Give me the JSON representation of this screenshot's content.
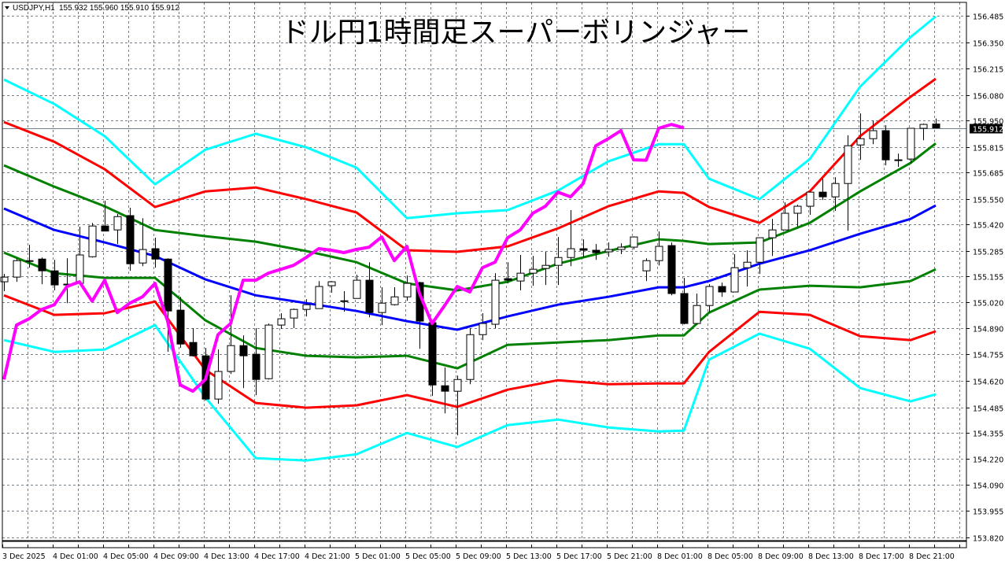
{
  "header": {
    "symbol": "USDJPY,H1",
    "ohlc": "155.932 155.960 155.910 155.912",
    "menu_icon": "triangle-down-icon"
  },
  "chart_data": {
    "type": "candlestick",
    "title": "ドル円1時間足スーパーボリンジャー",
    "ylim": [
      153.82,
      156.485
    ],
    "grid": true,
    "price_labels": [
      "156.485",
      "156.350",
      "156.215",
      "156.080",
      "155.950",
      "155.815",
      "155.685",
      "155.550",
      "155.420",
      "155.285",
      "155.155",
      "155.020",
      "154.890",
      "154.755",
      "154.620",
      "154.485",
      "154.355",
      "154.220",
      "154.090",
      "153.955",
      "153.820"
    ],
    "current_price": "155.912",
    "time_labels": [
      "3 Dec 2025",
      "4 Dec 01:00",
      "4 Dec 05:00",
      "4 Dec 09:00",
      "4 Dec 13:00",
      "4 Dec 17:00",
      "4 Dec 21:00",
      "5 Dec 01:00",
      "5 Dec 05:00",
      "5 Dec 09:00",
      "5 Dec 13:00",
      "5 Dec 17:00",
      "5 Dec 21:00",
      "8 Dec 01:00",
      "8 Dec 05:00",
      "8 Dec 09:00",
      "8 Dec 13:00",
      "8 Dec 17:00",
      "8 Dec 21:00"
    ],
    "colors": {
      "bull_fill": "#ffffff",
      "bear_fill": "#000000",
      "outline": "#000000",
      "grid": "#708090",
      "price_line": "#708090"
    },
    "candles": [
      [
        "3 Dec 21:00",
        155.126,
        155.166,
        155.078,
        155.15
      ],
      [
        "3 Dec 22:00",
        155.15,
        155.246,
        155.126,
        155.234
      ],
      [
        "3 Dec 23:00",
        155.234,
        155.315,
        155.198,
        155.232
      ],
      [
        "4 Dec 00:00",
        155.242,
        155.25,
        155.114,
        155.182
      ],
      [
        "4 Dec 01:00",
        155.182,
        155.238,
        155.082,
        155.11
      ],
      [
        "4 Dec 02:00",
        155.114,
        155.246,
        155.017,
        155.112
      ],
      [
        "4 Dec 03:00",
        155.118,
        155.407,
        155.118,
        155.263
      ],
      [
        "4 Dec 04:00",
        155.254,
        155.427,
        155.25,
        155.411
      ],
      [
        "4 Dec 05:00",
        155.411,
        155.54,
        155.385,
        155.385
      ],
      [
        "4 Dec 06:00",
        155.391,
        155.472,
        155.319,
        155.459
      ],
      [
        "4 Dec 07:00",
        155.464,
        155.504,
        155.182,
        155.218
      ],
      [
        "4 Dec 08:00",
        155.222,
        155.451,
        155.206,
        155.291
      ],
      [
        "4 Dec 09:00",
        155.295,
        155.351,
        155.198,
        155.242
      ],
      [
        "4 Dec 10:00",
        155.242,
        155.246,
        154.768,
        154.977
      ],
      [
        "4 Dec 11:00",
        154.981,
        155.049,
        154.788,
        154.808
      ],
      [
        "4 Dec 12:00",
        154.816,
        154.889,
        154.744,
        154.748
      ],
      [
        "4 Dec 13:00",
        154.748,
        154.788,
        154.52,
        154.527
      ],
      [
        "4 Dec 14:00",
        154.527,
        154.78,
        154.503,
        154.668
      ],
      [
        "4 Dec 15:00",
        154.668,
        155.057,
        154.655,
        154.8
      ],
      [
        "4 Dec 16:00",
        154.8,
        154.852,
        154.583,
        154.748
      ],
      [
        "4 Dec 17:00",
        154.756,
        154.889,
        154.547,
        154.627
      ],
      [
        "4 Dec 18:00",
        154.631,
        154.913,
        154.627,
        154.905
      ],
      [
        "4 Dec 19:00",
        154.905,
        154.965,
        154.885,
        154.937
      ],
      [
        "4 Dec 20:00",
        154.941,
        154.989,
        154.889,
        154.985
      ],
      [
        "4 Dec 21:00",
        154.985,
        155.037,
        154.949,
        155.009
      ],
      [
        "4 Dec 22:00",
        154.989,
        155.13,
        154.989,
        155.102
      ],
      [
        "4 Dec 23:00",
        155.106,
        155.13,
        155.07,
        155.126
      ],
      [
        "5 Dec 00:00",
        155.029,
        155.078,
        154.973,
        155.027
      ],
      [
        "5 Dec 01:00",
        155.041,
        155.162,
        155.041,
        155.134
      ],
      [
        "5 Dec 02:00",
        155.134,
        155.226,
        154.945,
        154.969
      ],
      [
        "5 Dec 03:00",
        154.969,
        155.098,
        154.905,
        155.017
      ],
      [
        "5 Dec 04:00",
        155.009,
        155.098,
        155.005,
        155.049
      ],
      [
        "5 Dec 05:00",
        155.049,
        155.158,
        155.029,
        155.118
      ],
      [
        "5 Dec 06:00",
        155.122,
        155.126,
        154.784,
        154.925
      ],
      [
        "5 Dec 07:00",
        154.917,
        154.921,
        154.543,
        154.599
      ],
      [
        "5 Dec 08:00",
        154.595,
        154.688,
        154.454,
        154.567
      ],
      [
        "5 Dec 09:00",
        154.567,
        154.647,
        154.342,
        154.627
      ],
      [
        "5 Dec 10:00",
        154.627,
        154.889,
        154.603,
        154.856
      ],
      [
        "5 Dec 11:00",
        154.856,
        154.965,
        154.828,
        154.913
      ],
      [
        "5 Dec 12:00",
        154.909,
        155.17,
        154.889,
        155.134
      ],
      [
        "5 Dec 13:00",
        155.142,
        155.226,
        155.118,
        155.134
      ],
      [
        "5 Dec 14:00",
        155.13,
        155.263,
        155.082,
        155.17
      ],
      [
        "5 Dec 15:00",
        155.17,
        155.258,
        155.106,
        155.19
      ],
      [
        "5 Dec 16:00",
        155.194,
        155.279,
        155.11,
        155.21
      ],
      [
        "5 Dec 17:00",
        155.21,
        155.355,
        155.11,
        155.25
      ],
      [
        "5 Dec 18:00",
        155.25,
        155.492,
        155.206,
        155.295
      ],
      [
        "5 Dec 19:00",
        155.295,
        155.343,
        155.25,
        155.287
      ],
      [
        "5 Dec 20:00",
        155.287,
        155.319,
        155.238,
        155.275
      ],
      [
        "5 Dec 21:00",
        155.279,
        155.327,
        155.254,
        155.291
      ],
      [
        "5 Dec 22:00",
        155.291,
        155.323,
        155.267,
        155.303
      ],
      [
        "5 Dec 23:00",
        155.303,
        155.358,
        155.291,
        155.355
      ],
      [
        "8 Dec 00:00",
        155.182,
        155.246,
        155.13,
        155.234
      ],
      [
        "8 Dec 01:00",
        155.234,
        155.383,
        155.21,
        155.307
      ],
      [
        "8 Dec 02:00",
        155.311,
        155.327,
        155.057,
        155.066
      ],
      [
        "8 Dec 03:00",
        155.066,
        155.146,
        154.909,
        154.913
      ],
      [
        "8 Dec 04:00",
        154.913,
        155.066,
        154.909,
        155.005
      ],
      [
        "8 Dec 05:00",
        155.005,
        155.114,
        154.969,
        155.102
      ],
      [
        "8 Dec 06:00",
        155.102,
        155.122,
        155.049,
        155.074
      ],
      [
        "8 Dec 07:00",
        155.074,
        155.267,
        155.074,
        155.198
      ],
      [
        "8 Dec 08:00",
        155.198,
        155.287,
        155.102,
        155.226
      ],
      [
        "8 Dec 09:00",
        155.226,
        155.351,
        155.166,
        155.351
      ],
      [
        "8 Dec 10:00",
        155.351,
        155.447,
        155.258,
        155.391
      ],
      [
        "8 Dec 11:00",
        155.391,
        155.532,
        155.391,
        155.476
      ],
      [
        "8 Dec 12:00",
        155.476,
        155.52,
        155.407,
        155.512
      ],
      [
        "8 Dec 13:00",
        155.512,
        155.588,
        155.468,
        155.584
      ],
      [
        "8 Dec 14:00",
        155.584,
        155.652,
        155.544,
        155.56
      ],
      [
        "8 Dec 15:00",
        155.56,
        155.66,
        155.488,
        155.628
      ],
      [
        "8 Dec 16:00",
        155.628,
        155.874,
        155.387,
        155.821
      ],
      [
        "8 Dec 17:00",
        155.825,
        155.986,
        155.749,
        155.857
      ],
      [
        "8 Dec 18:00",
        155.857,
        155.95,
        155.829,
        155.898
      ],
      [
        "8 Dec 19:00",
        155.898,
        155.926,
        155.721,
        155.749
      ],
      [
        "8 Dec 20:00",
        155.749,
        155.781,
        155.713,
        155.747
      ],
      [
        "8 Dec 21:00",
        155.753,
        155.91,
        155.729,
        155.91
      ],
      [
        "8 Dec 22:00",
        155.91,
        155.934,
        155.849,
        155.93
      ],
      [
        "8 Dec 23:00",
        155.932,
        155.96,
        155.91,
        155.912
      ]
    ],
    "band_times": [
      "3 Dec 21:00",
      "4 Dec 01:00",
      "4 Dec 05:00",
      "4 Dec 09:00",
      "4 Dec 13:00",
      "4 Dec 17:00",
      "4 Dec 21:00",
      "5 Dec 01:00",
      "5 Dec 05:00",
      "5 Dec 09:00",
      "5 Dec 13:00",
      "5 Dec 17:00",
      "5 Dec 21:00",
      "8 Dec 01:00",
      "8 Dec 03:00",
      "8 Dec 05:00",
      "8 Dec 09:00",
      "8 Dec 13:00",
      "8 Dec 17:00",
      "8 Dec 21:00",
      "8 Dec 23:00"
    ],
    "bands": [
      {
        "color": "#00ffff",
        "values": [
          156.159,
          156.034,
          155.87,
          155.624,
          155.801,
          155.882,
          155.813,
          155.709,
          155.451,
          155.476,
          155.492,
          155.592,
          155.741,
          155.829,
          155.829,
          155.652,
          155.548,
          155.753,
          156.123,
          156.376,
          156.481
        ]
      },
      {
        "color": "#ff0000",
        "values": [
          155.942,
          155.841,
          155.701,
          155.508,
          155.588,
          155.608,
          155.548,
          155.48,
          155.287,
          155.279,
          155.307,
          155.399,
          155.512,
          155.588,
          155.58,
          155.508,
          155.427,
          155.588,
          155.87,
          156.071,
          156.163
        ]
      },
      {
        "color": "#008000",
        "values": [
          155.721,
          155.612,
          155.512,
          155.391,
          155.359,
          155.331,
          155.283,
          155.226,
          155.118,
          155.082,
          155.126,
          155.218,
          155.283,
          155.343,
          155.335,
          155.319,
          155.327,
          155.427,
          155.588,
          155.733,
          155.833
        ]
      },
      {
        "color": "#0000ff",
        "values": [
          155.5,
          155.391,
          155.327,
          155.258,
          155.138,
          155.057,
          155.017,
          154.977,
          154.925,
          154.881,
          154.949,
          155.009,
          155.049,
          155.098,
          155.098,
          155.13,
          155.218,
          155.287,
          155.371,
          155.447,
          155.516
        ]
      },
      {
        "color": "#008000",
        "values": [
          155.275,
          155.17,
          155.146,
          155.146,
          154.929,
          154.788,
          154.748,
          154.74,
          154.748,
          154.684,
          154.804,
          154.816,
          154.828,
          154.852,
          154.852,
          154.969,
          155.086,
          155.106,
          155.098,
          155.13,
          155.19
        ]
      },
      {
        "color": "#ff0000",
        "values": [
          155.057,
          154.957,
          154.965,
          155.025,
          154.676,
          154.507,
          154.483,
          154.495,
          154.547,
          154.487,
          154.575,
          154.623,
          154.603,
          154.607,
          154.607,
          154.768,
          154.973,
          154.957,
          154.848,
          154.828,
          154.873
        ]
      },
      {
        "color": "#00ffff",
        "values": [
          154.828,
          154.768,
          154.78,
          154.905,
          154.535,
          154.225,
          154.213,
          154.245,
          154.354,
          154.282,
          154.394,
          154.422,
          154.382,
          154.362,
          154.366,
          154.728,
          154.861,
          154.784,
          154.583,
          154.515,
          154.551
        ]
      }
    ],
    "lagging_line": {
      "color": "#ff00ff",
      "start_time": "3 Dec 21:00",
      "values": [
        154.627,
        154.905,
        154.937,
        154.985,
        155.009,
        155.102,
        155.126,
        155.027,
        155.134,
        154.969,
        155.017,
        155.049,
        155.118,
        154.925,
        154.599,
        154.567,
        154.627,
        154.856,
        154.913,
        155.134,
        155.134,
        155.17,
        155.19,
        155.21,
        155.25,
        155.295,
        155.287,
        155.275,
        155.291,
        155.303,
        155.355,
        155.234,
        155.307,
        155.066,
        154.913,
        155.005,
        155.102,
        155.074,
        155.198,
        155.226,
        155.351,
        155.391,
        155.476,
        155.512,
        155.584,
        155.56,
        155.628,
        155.821,
        155.857,
        155.898,
        155.749,
        155.747,
        155.91,
        155.93,
        155.912
      ]
    }
  }
}
